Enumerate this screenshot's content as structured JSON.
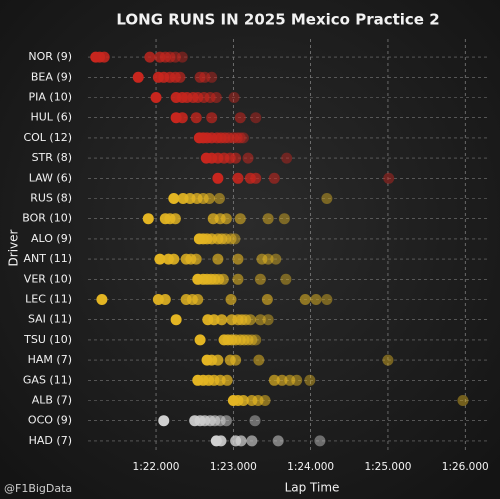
{
  "chart_data": {
    "type": "strip",
    "title": "LONG RUNS IN 2025 Mexico Practice 2",
    "x_label": "Lap Time",
    "y_label": "Driver",
    "watermark": "@F1BigData",
    "grid": true,
    "xlim": [
      81.12,
      86.32
    ],
    "xticks": [
      {
        "value": 82,
        "label": "1:22.000"
      },
      {
        "value": 83,
        "label": "1:23.000"
      },
      {
        "value": 84,
        "label": "1:24.000"
      },
      {
        "value": 85,
        "label": "1:25.000"
      },
      {
        "value": 86,
        "label": "1:26.000"
      }
    ],
    "categories": [
      "NOR (9)",
      "BEA (9)",
      "PIA (10)",
      "HUL (6)",
      "COL (12)",
      "STR (8)",
      "LAW (6)",
      "RUS (8)",
      "BOR (10)",
      "ALO (9)",
      "ANT (11)",
      "VER (10)",
      "LEC (11)",
      "SAI (11)",
      "TSU (10)",
      "HAM (7)",
      "GAS (11)",
      "ALB (7)",
      "OCO (9)",
      "HAD (7)"
    ],
    "colors": [
      "#c8261e",
      "#c8261e",
      "#c8261e",
      "#c8261e",
      "#c8261e",
      "#c8261e",
      "#c8261e",
      "#e3b523",
      "#e3b523",
      "#e3b523",
      "#e3b523",
      "#e3b523",
      "#e3b523",
      "#e3b523",
      "#e3b523",
      "#e3b523",
      "#e3b523",
      "#e3b523",
      "#d0d0d0",
      "#d0d0d0"
    ],
    "values": [
      [
        81.22,
        81.27,
        81.33,
        81.92,
        82.05,
        82.12,
        82.18,
        82.25,
        82.34
      ],
      [
        81.77,
        82.03,
        82.1,
        82.18,
        82.25,
        82.31,
        82.57,
        82.63,
        82.72
      ],
      [
        82.0,
        82.26,
        82.34,
        82.4,
        82.48,
        82.54,
        82.62,
        82.7,
        82.78,
        83.01
      ],
      [
        82.26,
        82.34,
        82.52,
        82.72,
        83.09,
        83.29
      ],
      [
        82.56,
        82.61,
        82.66,
        82.72,
        82.79,
        82.84,
        82.89,
        82.94,
        83.0,
        83.05,
        83.09,
        83.13
      ],
      [
        82.65,
        82.72,
        82.8,
        82.88,
        82.96,
        83.03,
        83.19,
        83.69
      ],
      [
        82.8,
        83.06,
        83.22,
        83.29,
        83.53,
        85.01
      ],
      [
        82.23,
        82.35,
        82.44,
        82.53,
        82.61,
        82.69,
        82.82,
        84.21
      ],
      [
        81.9,
        82.12,
        82.18,
        82.25,
        82.74,
        82.83,
        82.91,
        83.09,
        83.45,
        83.66
      ],
      [
        82.56,
        82.61,
        82.66,
        82.72,
        82.8,
        82.85,
        82.9,
        82.97,
        83.02
      ],
      [
        82.05,
        82.16,
        82.23,
        82.39,
        82.45,
        82.52,
        82.8,
        83.06,
        83.37,
        83.45,
        83.55
      ],
      [
        82.54,
        82.61,
        82.66,
        82.71,
        82.76,
        82.81,
        82.87,
        83.06,
        83.35,
        83.68
      ],
      [
        81.3,
        82.03,
        82.12,
        82.39,
        82.47,
        82.54,
        82.97,
        83.44,
        83.93,
        84.07,
        84.21
      ],
      [
        82.26,
        82.67,
        82.75,
        82.85,
        82.98,
        83.06,
        83.11,
        83.16,
        83.22,
        83.35,
        83.45
      ],
      [
        82.57,
        82.88,
        82.93,
        82.98,
        83.03,
        83.09,
        83.14,
        83.19,
        83.24,
        83.29
      ],
      [
        82.66,
        82.72,
        82.8,
        82.96,
        83.03,
        83.33,
        85.0
      ],
      [
        82.54,
        82.61,
        82.68,
        82.75,
        82.83,
        82.92,
        83.53,
        83.63,
        83.73,
        83.82,
        83.99
      ],
      [
        83.0,
        83.06,
        83.13,
        83.24,
        83.32,
        83.41,
        85.97
      ],
      [
        82.1,
        82.5,
        82.57,
        82.63,
        82.7,
        82.76,
        82.83,
        82.91,
        83.28
      ],
      [
        82.78,
        82.84,
        83.03,
        83.1,
        83.24,
        83.58,
        84.12
      ]
    ]
  }
}
